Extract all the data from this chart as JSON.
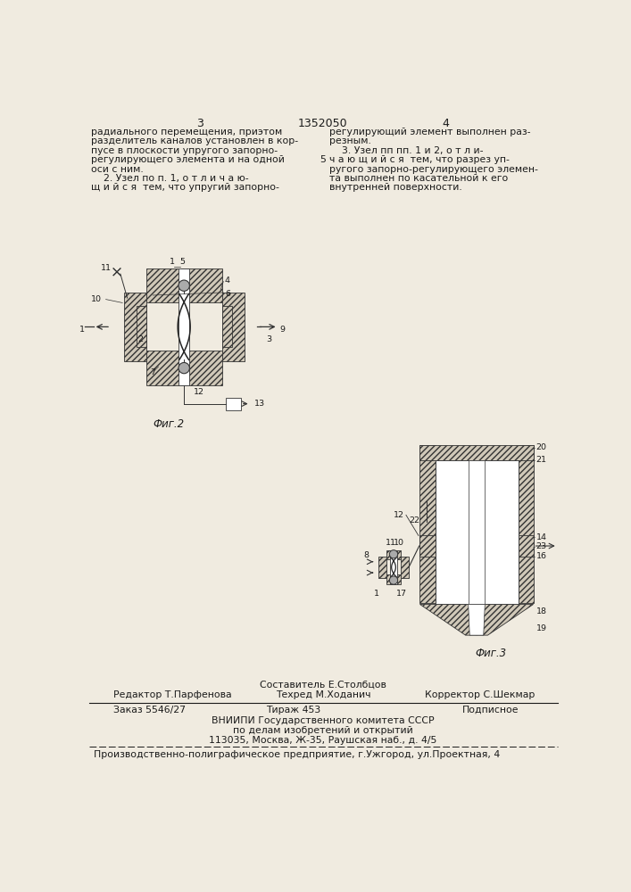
{
  "page_number_left": "3",
  "page_number_center": "1352050",
  "page_number_right": "4",
  "text_left_col": [
    "радиального перемещения, приэтом",
    "разделитель каналов установлен в кор-",
    "пусе в плоскости упругого запорно-",
    "регулирующего элемента и на одной",
    "оси с ним.",
    "    2. Узел по п. 1, о т л и ч а ю-",
    "щ и й с я  тем, что упругий запорно-"
  ],
  "text_right_col": [
    "регулирующий элемент выполнен раз-",
    "резным.",
    "    3. Узел пп пп. 1 и 2, о т л и-",
    "ч а ю щ и й с я  тем, что разрез уп-",
    "ругого запорно-регулирующего элемен-",
    "та выполнен по касательной к его",
    "внутренней поверхности."
  ],
  "line5_number": "5",
  "fig2_label": "Фиг.2",
  "fig3_label": "Фиг.3",
  "footer_sestavitel": "Составитель Е.Столбцов",
  "footer_editor": "Редактор Т.Парфенова",
  "footer_tekhred": "Техред М.Ходанич",
  "footer_korrektor": "Корректор С.Шекмар",
  "footer_zakaz": "Заказ 5546/27",
  "footer_tirazh": "Тираж 453",
  "footer_podpisnoe": "Подписное",
  "footer_vniipи": "ВНИИПИ Государственного комитета СССР",
  "footer_po_delam": "по делам изобретений и открытий",
  "footer_address": "113035, Москва, Ж-35, Раушская наб., д. 4/5",
  "footer_proizv": "Производственно-полиграфическое предприятие, г.Ужгород, ул.Проектная, 4",
  "bg_color": "#f0ebe0",
  "text_color": "#1a1a1a",
  "hatch_color": "#333333"
}
